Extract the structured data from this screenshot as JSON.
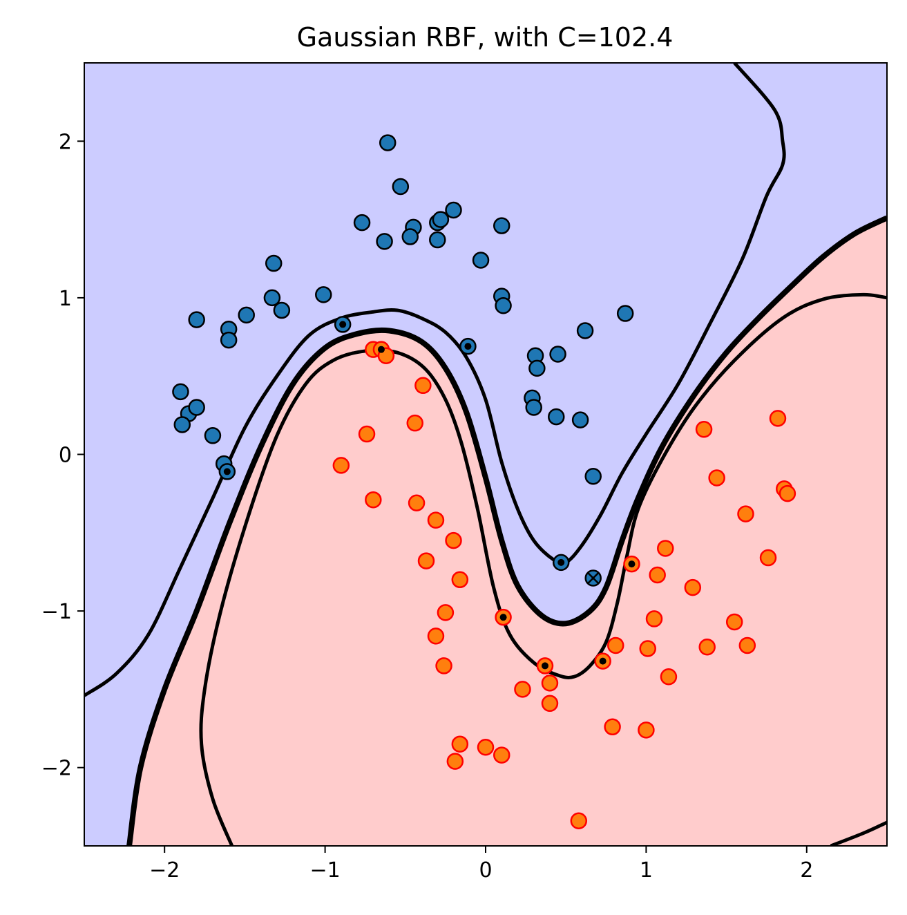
{
  "chart_data": {
    "type": "scatter",
    "title": "Gaussian RBF, with C=102.4",
    "xlabel": "",
    "ylabel": "",
    "xlim": [
      -2.5,
      2.5
    ],
    "ylim": [
      -2.5,
      2.5
    ],
    "x_ticks": [
      -2,
      -1,
      0,
      1,
      2
    ],
    "y_ticks": [
      -2,
      -1,
      0,
      1,
      2
    ],
    "x_tick_labels": [
      "−2",
      "−1",
      "0",
      "1",
      "2"
    ],
    "y_tick_labels": [
      "−2",
      "−1",
      "0",
      "1",
      "2"
    ],
    "grid": false,
    "legend": "none",
    "region_colors": {
      "class_0": "#ccccff",
      "class_1": "#ffcccc"
    },
    "decision_boundary_color": "#000000",
    "margin_color": "#000000",
    "series": [
      {
        "marker_fill": "#1f77b4",
        "marker_edge": "#000000",
        "points": [
          [
            -0.61,
            1.99
          ],
          [
            -0.53,
            1.71
          ],
          [
            -0.77,
            1.48
          ],
          [
            -0.45,
            1.45
          ],
          [
            -0.47,
            1.39
          ],
          [
            -0.3,
            1.48
          ],
          [
            -0.28,
            1.5
          ],
          [
            -0.2,
            1.56
          ],
          [
            -0.3,
            1.37
          ],
          [
            -0.63,
            1.36
          ],
          [
            0.1,
            1.46
          ],
          [
            -0.03,
            1.24
          ],
          [
            -1.32,
            1.22
          ],
          [
            0.1,
            1.01
          ],
          [
            0.11,
            0.95
          ],
          [
            -1.01,
            1.02
          ],
          [
            -1.33,
            1.0
          ],
          [
            -1.27,
            0.92
          ],
          [
            -1.49,
            0.89
          ],
          [
            -1.8,
            0.86
          ],
          [
            -1.6,
            0.8
          ],
          [
            -1.6,
            0.73
          ],
          [
            0.62,
            0.79
          ],
          [
            0.87,
            0.9
          ],
          [
            -0.89,
            0.83
          ],
          [
            -0.11,
            0.69
          ],
          [
            0.31,
            0.63
          ],
          [
            0.45,
            0.64
          ],
          [
            0.32,
            0.55
          ],
          [
            0.29,
            0.36
          ],
          [
            0.3,
            0.3
          ],
          [
            0.44,
            0.24
          ],
          [
            0.59,
            0.22
          ],
          [
            -1.9,
            0.4
          ],
          [
            -1.85,
            0.26
          ],
          [
            -1.8,
            0.3
          ],
          [
            -1.89,
            0.19
          ],
          [
            -1.7,
            0.12
          ],
          [
            -1.63,
            -0.06
          ],
          [
            -1.61,
            -0.11
          ],
          [
            0.67,
            -0.14
          ],
          [
            0.47,
            -0.69
          ],
          [
            0.67,
            -0.79
          ]
        ]
      },
      {
        "marker_fill": "#ff7f0e",
        "marker_edge": "#ff0000",
        "points": [
          [
            -0.7,
            0.67
          ],
          [
            -0.65,
            0.67
          ],
          [
            -0.62,
            0.63
          ],
          [
            -0.39,
            0.44
          ],
          [
            -0.74,
            0.13
          ],
          [
            -0.44,
            0.2
          ],
          [
            -0.9,
            -0.07
          ],
          [
            -0.7,
            -0.29
          ],
          [
            -0.43,
            -0.31
          ],
          [
            -0.31,
            -0.42
          ],
          [
            -0.2,
            -0.55
          ],
          [
            -0.37,
            -0.68
          ],
          [
            -0.16,
            -0.8
          ],
          [
            -0.25,
            -1.01
          ],
          [
            -0.31,
            -1.16
          ],
          [
            -0.26,
            -1.35
          ],
          [
            0.11,
            -1.04
          ],
          [
            0.37,
            -1.35
          ],
          [
            0.4,
            -1.46
          ],
          [
            0.23,
            -1.5
          ],
          [
            0.4,
            -1.59
          ],
          [
            0.73,
            -1.32
          ],
          [
            0.81,
            -1.22
          ],
          [
            0.91,
            -0.7
          ],
          [
            1.07,
            -0.77
          ],
          [
            1.12,
            -0.6
          ],
          [
            1.29,
            -0.85
          ],
          [
            1.05,
            -1.05
          ],
          [
            1.01,
            -1.24
          ],
          [
            1.14,
            -1.42
          ],
          [
            0.79,
            -1.74
          ],
          [
            1.0,
            -1.76
          ],
          [
            -0.16,
            -1.85
          ],
          [
            -0.19,
            -1.96
          ],
          [
            0.0,
            -1.87
          ],
          [
            0.1,
            -1.92
          ],
          [
            0.58,
            -2.34
          ],
          [
            1.36,
            0.16
          ],
          [
            1.44,
            -0.15
          ],
          [
            1.62,
            -0.38
          ],
          [
            1.82,
            0.23
          ],
          [
            1.86,
            -0.22
          ],
          [
            1.88,
            -0.25
          ],
          [
            1.76,
            -0.66
          ],
          [
            1.55,
            -1.07
          ],
          [
            1.38,
            -1.23
          ],
          [
            1.63,
            -1.22
          ]
        ]
      }
    ],
    "support_vectors": [
      [
        -0.89,
        0.83
      ],
      [
        -0.11,
        0.69
      ],
      [
        -1.61,
        -0.11
      ],
      [
        0.47,
        -0.69
      ],
      [
        -0.65,
        0.67
      ],
      [
        0.11,
        -1.04
      ],
      [
        0.37,
        -1.35
      ],
      [
        0.73,
        -1.32
      ],
      [
        0.91,
        -0.7
      ]
    ],
    "misclassified": [
      [
        0.67,
        -0.79
      ]
    ],
    "decision_boundary": [
      [
        -2.22,
        -2.5
      ],
      [
        -2.15,
        -2.0
      ],
      [
        -2.0,
        -1.5
      ],
      [
        -1.8,
        -1.0
      ],
      [
        -1.6,
        -0.45
      ],
      [
        -1.4,
        0.05
      ],
      [
        -1.2,
        0.45
      ],
      [
        -1.0,
        0.68
      ],
      [
        -0.8,
        0.77
      ],
      [
        -0.6,
        0.79
      ],
      [
        -0.4,
        0.72
      ],
      [
        -0.25,
        0.55
      ],
      [
        -0.12,
        0.27
      ],
      [
        0.0,
        -0.15
      ],
      [
        0.1,
        -0.55
      ],
      [
        0.2,
        -0.84
      ],
      [
        0.35,
        -1.03
      ],
      [
        0.5,
        -1.08
      ],
      [
        0.65,
        -1.0
      ],
      [
        0.75,
        -0.85
      ],
      [
        0.85,
        -0.55
      ],
      [
        0.95,
        -0.28
      ],
      [
        1.1,
        0.05
      ],
      [
        1.3,
        0.38
      ],
      [
        1.5,
        0.65
      ],
      [
        1.7,
        0.87
      ],
      [
        1.9,
        1.07
      ],
      [
        2.1,
        1.26
      ],
      [
        2.3,
        1.41
      ],
      [
        2.5,
        1.51
      ]
    ],
    "margins": [
      [
        [
          -2.5,
          -1.54
        ],
        [
          -2.3,
          -1.4
        ],
        [
          -2.1,
          -1.15
        ],
        [
          -1.9,
          -0.72
        ],
        [
          -1.7,
          -0.28
        ],
        [
          -1.5,
          0.17
        ],
        [
          -1.3,
          0.5
        ],
        [
          -1.1,
          0.76
        ],
        [
          -0.9,
          0.87
        ],
        [
          -0.7,
          0.91
        ],
        [
          -0.55,
          0.92
        ],
        [
          -0.4,
          0.87
        ],
        [
          -0.25,
          0.78
        ],
        [
          -0.12,
          0.62
        ],
        [
          0.0,
          0.35
        ],
        [
          0.1,
          -0.05
        ],
        [
          0.2,
          -0.35
        ],
        [
          0.3,
          -0.55
        ],
        [
          0.42,
          -0.67
        ],
        [
          0.5,
          -0.69
        ],
        [
          0.6,
          -0.58
        ],
        [
          0.72,
          -0.38
        ],
        [
          0.85,
          -0.12
        ],
        [
          1.0,
          0.13
        ],
        [
          1.2,
          0.45
        ],
        [
          1.4,
          0.84
        ],
        [
          1.6,
          1.25
        ],
        [
          1.75,
          1.65
        ],
        [
          1.85,
          1.85
        ],
        [
          1.85,
          2.0
        ],
        [
          1.8,
          2.2
        ],
        [
          1.55,
          2.5
        ]
      ],
      [
        [
          -1.58,
          -2.5
        ],
        [
          -1.7,
          -2.2
        ],
        [
          -1.77,
          -1.85
        ],
        [
          -1.75,
          -1.5
        ],
        [
          -1.65,
          -1.0
        ],
        [
          -1.48,
          -0.4
        ],
        [
          -1.3,
          0.12
        ],
        [
          -1.12,
          0.45
        ],
        [
          -0.95,
          0.6
        ],
        [
          -0.75,
          0.66
        ],
        [
          -0.55,
          0.65
        ],
        [
          -0.38,
          0.55
        ],
        [
          -0.25,
          0.35
        ],
        [
          -0.15,
          0.07
        ],
        [
          -0.05,
          -0.35
        ],
        [
          0.05,
          -0.85
        ],
        [
          0.15,
          -1.15
        ],
        [
          0.3,
          -1.33
        ],
        [
          0.45,
          -1.41
        ],
        [
          0.55,
          -1.42
        ],
        [
          0.65,
          -1.35
        ],
        [
          0.75,
          -1.2
        ],
        [
          0.82,
          -0.95
        ],
        [
          0.88,
          -0.65
        ],
        [
          0.95,
          -0.35
        ],
        [
          1.1,
          -0.03
        ],
        [
          1.3,
          0.3
        ],
        [
          1.55,
          0.6
        ],
        [
          1.85,
          0.87
        ],
        [
          2.1,
          0.99
        ],
        [
          2.35,
          1.02
        ],
        [
          2.5,
          1.0
        ]
      ],
      [
        [
          2.15,
          -2.5
        ],
        [
          2.35,
          -2.42
        ],
        [
          2.5,
          -2.35
        ]
      ]
    ]
  }
}
